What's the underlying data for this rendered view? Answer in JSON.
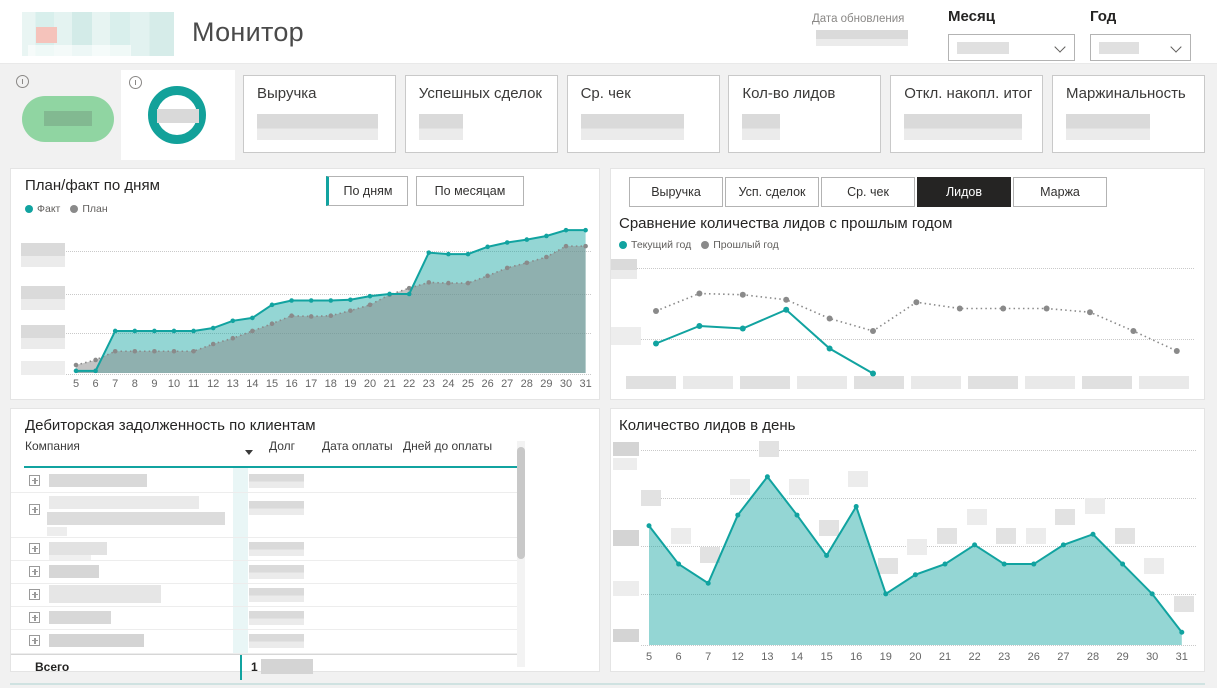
{
  "header": {
    "title": "Монитор",
    "logo": "pixelated-logo-placeholder",
    "update_label": "Дата обновления",
    "update_value": "(blurred)",
    "month_label": "Месяц",
    "month_value": "(blurred)",
    "year_label": "Год",
    "year_value": "(blurred)"
  },
  "kpi": {
    "tiles": [
      {
        "shape": "green-pill",
        "value": "(blurred)"
      },
      {
        "shape": "teal-ring",
        "value": "(blurred)"
      }
    ],
    "cards": [
      {
        "label": "Выручка",
        "value": "(blurred)"
      },
      {
        "label": "Успешных сделок",
        "value": "(blurred)"
      },
      {
        "label": "Ср. чек",
        "value": "(blurred)"
      },
      {
        "label": "Кол-во лидов",
        "value": "(blurred)"
      },
      {
        "label": "Откл. накопл. итог",
        "value": "(blurred)"
      },
      {
        "label": "Маржинальность",
        "value": "(blurred)"
      }
    ]
  },
  "plan_fact": {
    "buttons": [
      {
        "label": "По дням",
        "active": true
      },
      {
        "label": "По месяцам",
        "active": false
      }
    ]
  },
  "compare": {
    "tabs": [
      {
        "label": "Выручка",
        "active": false
      },
      {
        "label": "Усп. сделок",
        "active": false
      },
      {
        "label": "Ср. чек",
        "active": false
      },
      {
        "label": "Лидов",
        "active": true
      },
      {
        "label": "Маржа",
        "active": false
      }
    ]
  },
  "debtors": {
    "title": "Дебиторская задолженность по клиентам",
    "columns": [
      "Компания",
      "Долг",
      "Дата оплаты",
      "Дней до оплаты"
    ],
    "rows_visible": 7,
    "cell_values": "blurred",
    "total_label": "Всего",
    "total_value_visible": "1",
    "total_value_rest": "(blurred)"
  },
  "chart_data": [
    {
      "id": "plan_fact",
      "type": "area",
      "title": "План/факт по дням",
      "categories": [
        5,
        6,
        7,
        8,
        9,
        10,
        11,
        12,
        13,
        14,
        15,
        16,
        17,
        18,
        19,
        20,
        21,
        22,
        23,
        24,
        25,
        26,
        27,
        28,
        29,
        30,
        31
      ],
      "y_unit": "percent_of_plot_height",
      "y_axis_labels": "blurred",
      "grid": true,
      "legend_position": "top-left",
      "series": [
        {
          "name": "Факт",
          "color": "#11a3a0",
          "style": "solid",
          "fill": true,
          "values": [
            1.5,
            1.5,
            29,
            29,
            29,
            29,
            29,
            31,
            36,
            38,
            47,
            50,
            50,
            50,
            50.5,
            53,
            54.5,
            54.5,
            83,
            82,
            82,
            87,
            90,
            92,
            94.5,
            98.5,
            98.5
          ]
        },
        {
          "name": "План",
          "color": "#8a8a8a",
          "style": "dotted",
          "fill": true,
          "values": [
            5.5,
            9,
            15,
            15,
            15,
            15,
            15,
            20,
            24,
            29,
            34,
            39.5,
            39,
            39.5,
            43,
            47,
            54,
            58.5,
            62.5,
            62,
            62,
            67,
            72.5,
            76,
            80,
            87.5,
            87.5
          ]
        }
      ]
    },
    {
      "id": "leads_compare",
      "type": "line",
      "title": "Сравнение количества лидов с прошлым годом",
      "x_axis_labels": "blurred",
      "categories_count": 13,
      "y_unit": "percent_of_plot_height",
      "grid": true,
      "legend_position": "top-left",
      "series": [
        {
          "name": "Текущий год",
          "color": "#11a3a0",
          "style": "solid",
          "fill": false,
          "values": [
            30,
            44,
            42,
            57,
            26,
            6
          ]
        },
        {
          "name": "Прошлый год",
          "color": "#8a8a8a",
          "style": "dotted",
          "fill": false,
          "values": [
            56,
            70,
            69,
            65,
            50,
            40,
            63,
            58,
            58,
            58,
            55,
            40,
            24
          ]
        }
      ]
    },
    {
      "id": "leads_daily",
      "type": "area",
      "title": "Количество лидов в день",
      "categories": [
        5,
        6,
        7,
        12,
        13,
        14,
        15,
        16,
        19,
        20,
        21,
        22,
        23,
        26,
        27,
        28,
        29,
        30,
        31
      ],
      "y_unit": "percent_of_plot_height",
      "y_axis_labels": "blurred",
      "data_labels": "blurred",
      "grid": true,
      "series": [
        {
          "name": "Лиды",
          "color": "#11a3a0",
          "style": "solid",
          "fill": true,
          "values": [
            56,
            38,
            29,
            61,
            79,
            61,
            42,
            65,
            24,
            33,
            38,
            47,
            38,
            38,
            47,
            52,
            38,
            24,
            6
          ]
        }
      ]
    }
  ],
  "colors": {
    "accent_teal": "#11a3a0",
    "ring_teal": "#12a19a",
    "pill_green": "#90d5a2",
    "tab_active_bg": "#252423",
    "gray_series": "#8a8a8a"
  }
}
